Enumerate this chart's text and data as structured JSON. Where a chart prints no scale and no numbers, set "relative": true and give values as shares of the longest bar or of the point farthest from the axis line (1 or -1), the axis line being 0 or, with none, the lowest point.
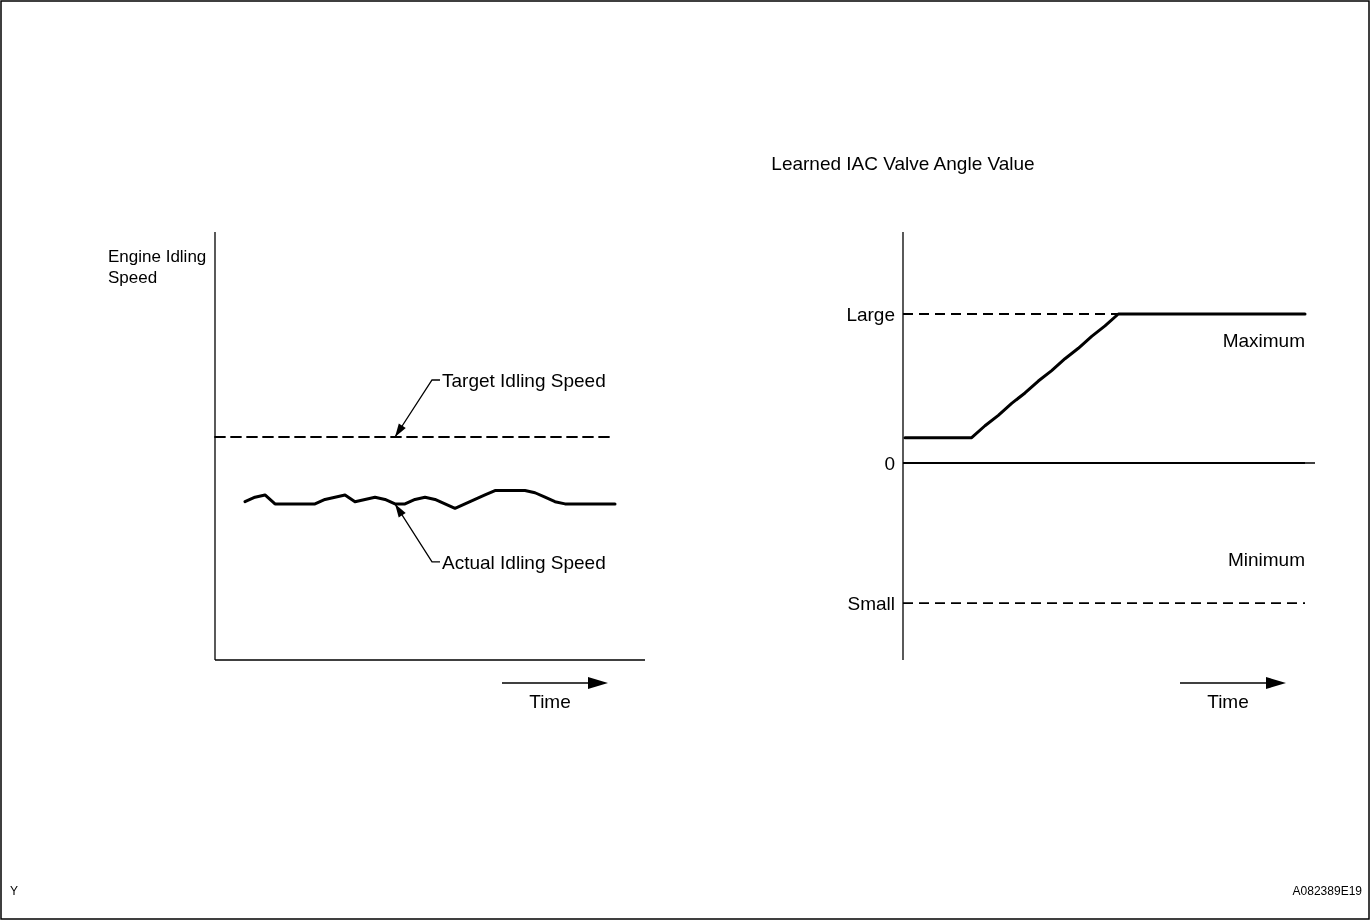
{
  "chart_data": [
    {
      "type": "line",
      "ylabel": "Engine Idling Speed",
      "xlabel": "Time",
      "relative": true,
      "categories": [
        null,
        null,
        null,
        null,
        null,
        null,
        null,
        null,
        null,
        null,
        null,
        null,
        null,
        null,
        null,
        null,
        null,
        null,
        null,
        null,
        null,
        null,
        null,
        null,
        null,
        null,
        null,
        null,
        null,
        null,
        null,
        null,
        null,
        null,
        null,
        null,
        null,
        null,
        null,
        null,
        null
      ],
      "series": [
        {
          "name": "Target Idling Speed",
          "color": "#000000",
          "line_style": "dashed",
          "values": [
            1,
            1,
            1,
            1,
            1,
            1,
            1,
            1,
            1,
            1,
            1,
            1,
            1,
            1,
            1,
            1,
            1,
            1,
            1,
            1,
            1,
            1,
            1,
            1,
            1,
            1,
            1,
            1,
            1,
            1,
            1,
            1,
            1,
            1,
            1,
            1,
            1,
            1,
            1,
            1,
            1
          ]
        },
        {
          "name": "Actual Idling Speed",
          "color": "#000000",
          "line_style": "solid",
          "values": [
            null,
            null,
            null,
            0.71,
            0.73,
            0.74,
            0.7,
            0.7,
            0.7,
            0.7,
            0.7,
            0.72,
            0.73,
            0.74,
            0.71,
            0.72,
            0.73,
            0.72,
            0.7,
            0.7,
            0.72,
            0.73,
            0.72,
            0.7,
            0.68,
            0.7,
            0.72,
            0.74,
            0.76,
            0.76,
            0.76,
            0.76,
            0.75,
            0.73,
            0.71,
            0.7,
            0.7,
            0.7,
            0.7,
            0.7,
            0.7
          ]
        }
      ],
      "annotations": [
        "Y"
      ]
    },
    {
      "type": "line",
      "ylabel": "Learned IAC Valve Angle Value",
      "xlabel": "Time",
      "relative": true,
      "categories": [
        null,
        null,
        null,
        null,
        null,
        null,
        null,
        null,
        null,
        null,
        null,
        null,
        null,
        null,
        null,
        null,
        null,
        null,
        null,
        null,
        null,
        null,
        null,
        null,
        null,
        null,
        null,
        null,
        null,
        null,
        null
      ],
      "series": [
        {
          "color": "#000000",
          "values": [
            0.17,
            0.17,
            0.17,
            0.17,
            0.17,
            0.17,
            0.25,
            0.32,
            0.4,
            0.47,
            0.55,
            0.62,
            0.7,
            0.77,
            0.85,
            0.92,
            1,
            1,
            1,
            1,
            1,
            1,
            1,
            1,
            1,
            1,
            1,
            1,
            1,
            1,
            1
          ]
        }
      ],
      "ref_lines": [
        {
          "axis": "y",
          "value": 1,
          "label": "Large",
          "line_style": "dashed",
          "color": "#000000"
        },
        {
          "axis": "y",
          "value": 0,
          "label": "0",
          "line_style": "solid",
          "color": "#000000"
        },
        {
          "axis": "y",
          "value": -0.94,
          "label": "Small",
          "line_style": "dashed",
          "color": "#000000"
        }
      ],
      "annotations": [
        "Maximum",
        "Minimum",
        "A082389E19"
      ]
    }
  ]
}
